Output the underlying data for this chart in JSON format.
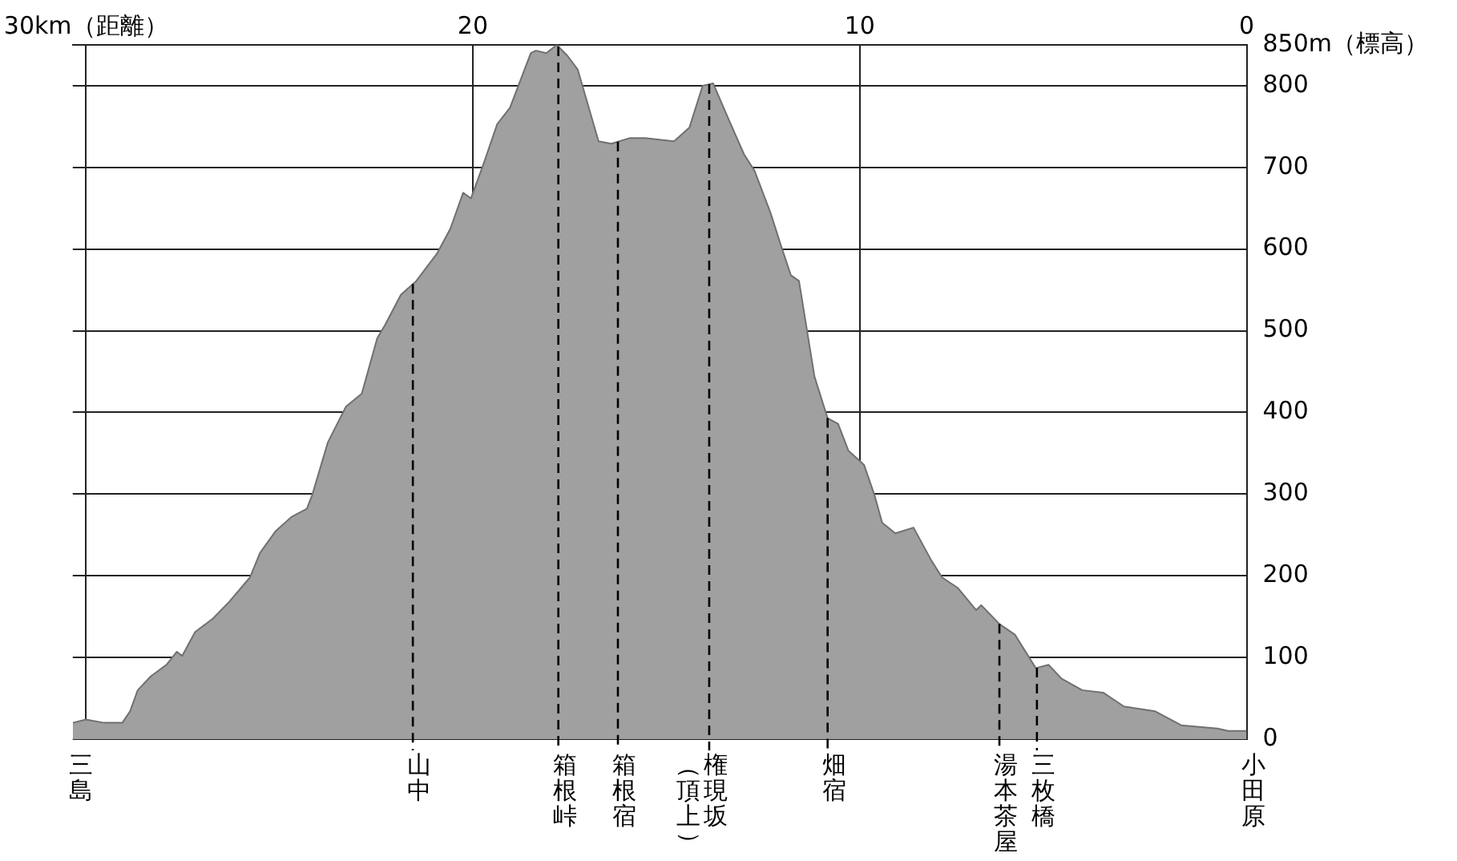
{
  "chart_data": {
    "type": "area",
    "x": [
      30.34,
      30,
      29.53,
      29.06,
      28.86,
      28.66,
      28.32,
      27.92,
      27.65,
      27.51,
      27.18,
      26.71,
      26.3,
      25.76,
      25.5,
      25.09,
      24.69,
      24.29,
      24.15,
      23.75,
      23.28,
      22.87,
      22.47,
      22.27,
      21.86,
      21.46,
      20.92,
      20.58,
      20.25,
      20.05,
      19.71,
      19.37,
      19.04,
      18.5,
      18.37,
      18.1,
      17.83,
      17.56,
      17.29,
      16.75,
      16.42,
      15.94,
      15.54,
      14.8,
      14.4,
      14.06,
      13.79,
      13.39,
      12.99,
      12.72,
      12.31,
      12.04,
      11.78,
      11.57,
      11.17,
      10.83,
      10.56,
      10.29,
      9.89,
      9.62,
      9.42,
      9.08,
      8.61,
      8.14,
      7.87,
      7.46,
      6.99,
      6.86,
      6.39,
      5.99,
      5.45,
      5.12,
      4.78,
      4.25,
      3.71,
      3.17,
      2.36,
      1.69,
      0.75,
      0.48,
      0
    ],
    "series": [
      {
        "color": "#a0a0a0",
        "values": [
          20,
          24,
          20,
          20,
          34,
          60,
          77,
          91,
          107,
          102,
          131,
          148,
          168,
          198,
          228,
          255,
          272,
          282,
          299,
          363,
          407,
          423,
          491,
          507,
          544,
          561,
          595,
          625,
          669,
          662,
          706,
          753,
          773,
          840,
          843,
          840,
          850,
          837,
          820,
          732,
          729,
          736,
          736,
          732,
          749,
          800,
          803,
          759,
          716,
          696,
          645,
          605,
          568,
          561,
          444,
          393,
          386,
          353,
          336,
          299,
          265,
          252,
          259,
          218,
          198,
          185,
          158,
          164,
          141,
          128,
          87,
          91,
          74,
          60,
          57,
          40,
          34,
          17,
          13,
          10,
          10
        ]
      }
    ],
    "xlim": [
      30.34,
      0
    ],
    "xticks": [
      {
        "value": 30,
        "label": "30km（距離）"
      },
      20,
      10,
      0
    ],
    "ylim": [
      0,
      850
    ],
    "yticks": [
      0,
      100,
      200,
      300,
      400,
      500,
      600,
      700,
      800,
      {
        "value": 850,
        "label": "850m（標高）"
      }
    ],
    "grid": true,
    "ref_lines": [
      {
        "axis": "x",
        "value": 21.55,
        "label": "山中",
        "line_style": "dashed",
        "color": "#000000"
      },
      {
        "axis": "x",
        "value": 17.79,
        "label": "箱根峠",
        "line_style": "dashed",
        "color": "#000000"
      },
      {
        "axis": "x",
        "value": 16.25,
        "label": "箱根宿",
        "line_style": "dashed",
        "color": "#000000"
      },
      {
        "axis": "x",
        "value": 13.89,
        "label": "権現坂（頂上）",
        "line_style": "dashed",
        "color": "#000000"
      },
      {
        "axis": "x",
        "value": 10.83,
        "label": "畑宿",
        "line_style": "dashed",
        "color": "#000000"
      },
      {
        "axis": "x",
        "value": 6.39,
        "label": "湯本茶屋",
        "line_style": "dashed",
        "color": "#000000"
      },
      {
        "axis": "x",
        "value": 5.42,
        "label": "三枚橋",
        "line_style": "dashed",
        "color": "#000000"
      }
    ],
    "annotations": [
      {
        "text": "三島",
        "x": 30.3,
        "y": 0
      },
      {
        "text": "小田原",
        "x": 0,
        "y": 0
      }
    ]
  }
}
